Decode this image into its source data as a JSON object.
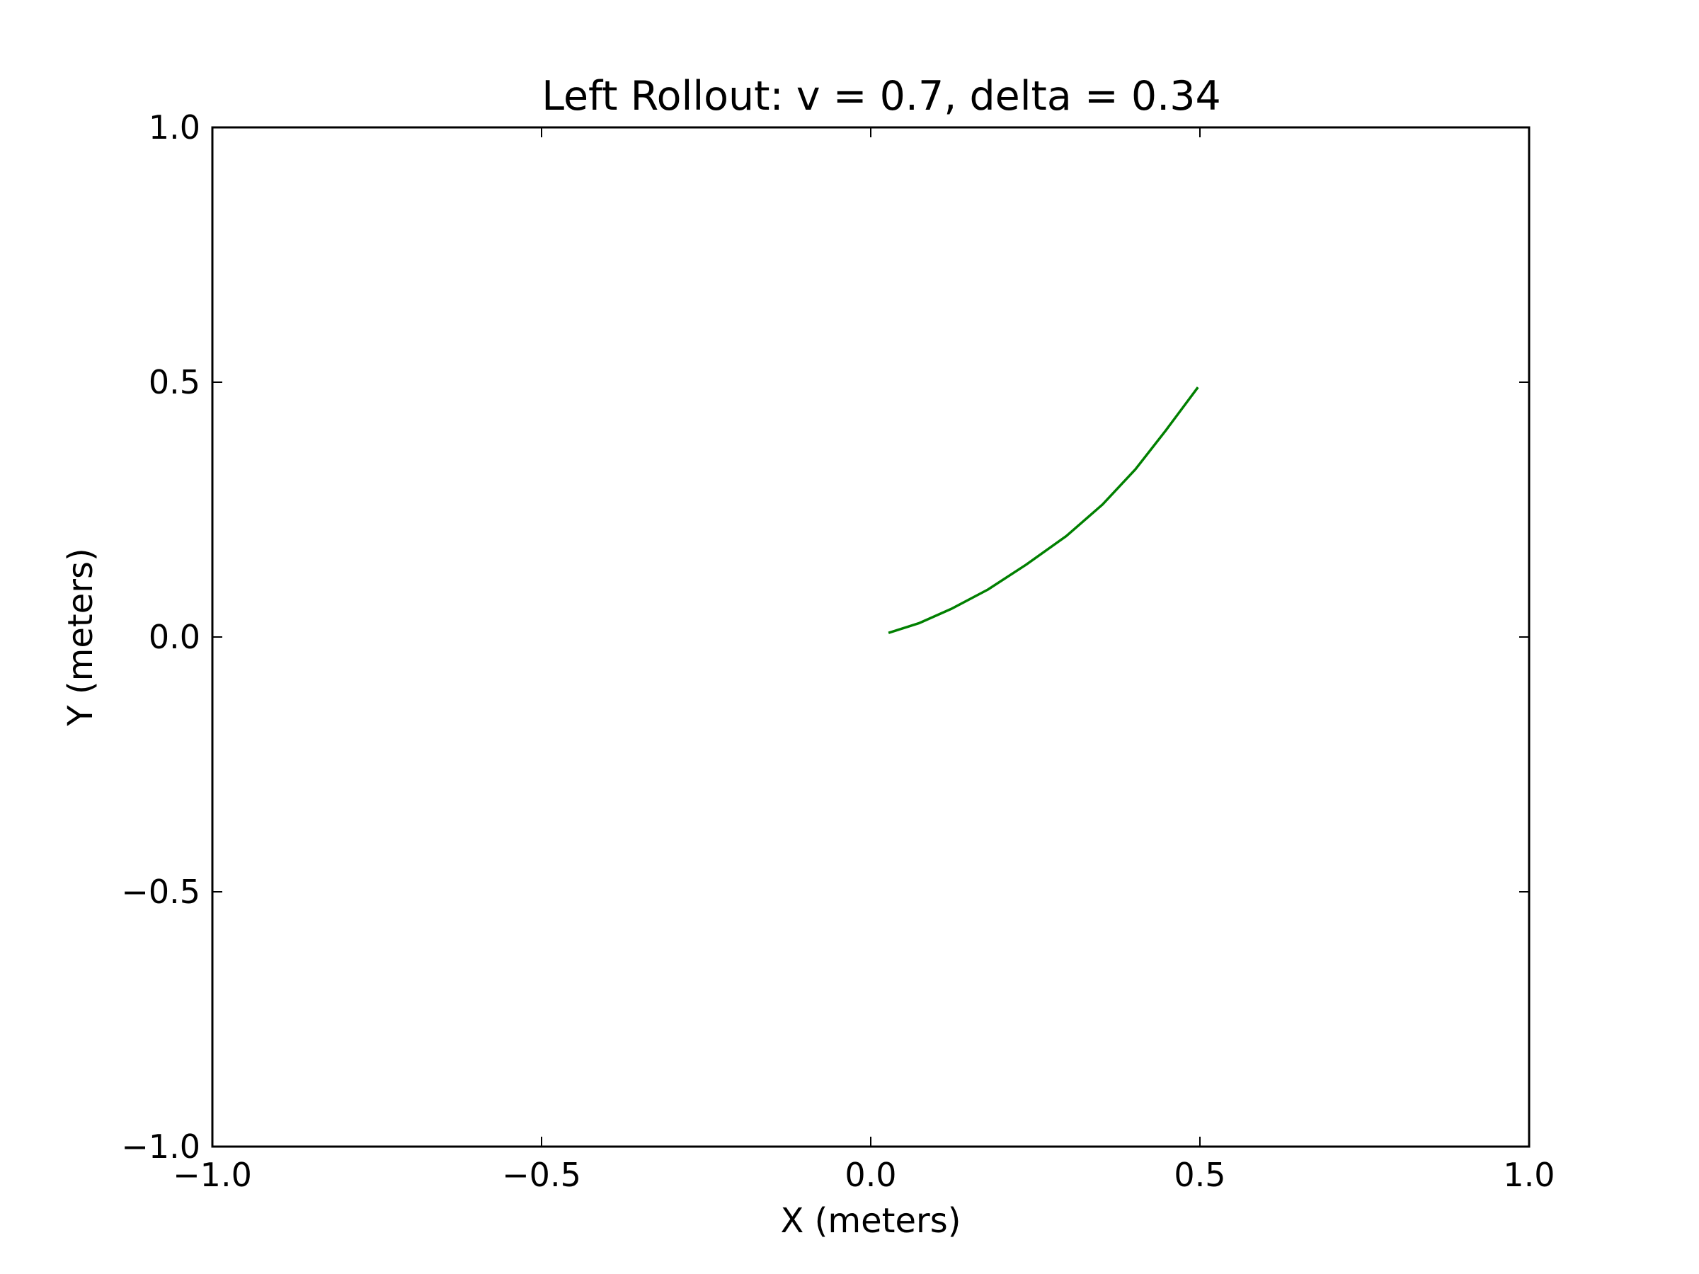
{
  "chart_data": {
    "type": "line",
    "title": "Left Rollout: v = 0.7, delta = 0.34",
    "xlabel": "X (meters)",
    "ylabel": "Y (meters)",
    "xlim": [
      -1.0,
      1.0
    ],
    "ylim": [
      -1.0,
      1.0
    ],
    "grid": false,
    "x_ticks": [
      {
        "value": -1.0,
        "label": "−1.0"
      },
      {
        "value": -0.5,
        "label": "−0.5"
      },
      {
        "value": 0.0,
        "label": "0.0"
      },
      {
        "value": 0.5,
        "label": "0.5"
      },
      {
        "value": 1.0,
        "label": "1.0"
      }
    ],
    "y_ticks": [
      {
        "value": -1.0,
        "label": "−1.0"
      },
      {
        "value": -0.5,
        "label": "−0.5"
      },
      {
        "value": 0.0,
        "label": "0.0"
      },
      {
        "value": 0.5,
        "label": "0.5"
      },
      {
        "value": 1.0,
        "label": "1.0"
      }
    ],
    "series": [
      {
        "color": "#008000",
        "x": [
          0.027,
          0.073,
          0.122,
          0.178,
          0.236,
          0.297,
          0.352,
          0.402,
          0.448,
          0.497
        ],
        "y": [
          0.008,
          0.027,
          0.055,
          0.093,
          0.142,
          0.198,
          0.26,
          0.329,
          0.405,
          0.49
        ]
      }
    ]
  }
}
